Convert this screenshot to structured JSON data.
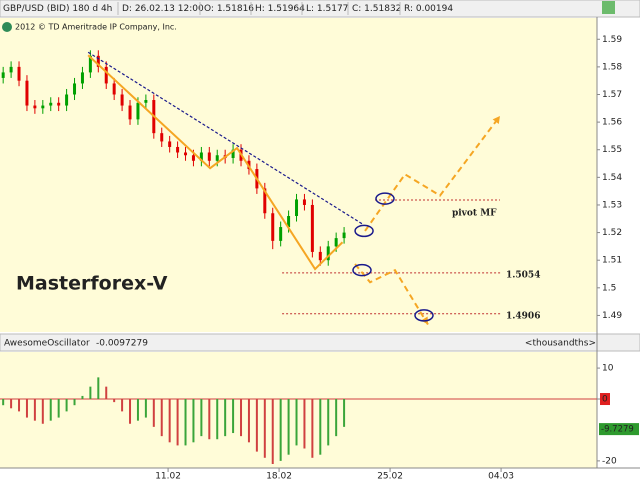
{
  "chart_data": [
    {
      "type": "candlestick",
      "title": "GBP/USD (BID) 180 d 4h",
      "readout": [
        "D: 26.02.13 12:00",
        "O: 1.51816",
        "H: 1.51964",
        "L: 1.5177",
        "C: 1.51832",
        "R: 0.00194"
      ],
      "copyright": "2012 © TD Ameritrade IP Company, Inc.",
      "watermark": "Masterforex-V",
      "x": [
        0.6,
        1.1,
        1.6,
        2.1,
        2.6,
        3.1,
        3.6,
        4.1,
        4.6,
        5.1,
        5.6,
        6.1,
        6.6,
        7.1,
        7.6,
        8.1,
        8.6,
        9.1,
        9.6,
        10.1,
        10.6,
        11.1,
        11.6,
        12.1,
        12.6,
        13.1,
        13.6,
        14.1,
        14.6,
        15.1,
        15.6,
        16.1,
        16.6,
        17.1,
        17.6,
        18.1,
        18.6,
        19.1,
        19.6,
        20.1,
        20.6,
        21.1,
        21.6,
        22.1
      ],
      "open": [
        1.576,
        1.578,
        1.58,
        1.575,
        1.566,
        1.565,
        1.566,
        1.567,
        1.566,
        1.57,
        1.574,
        1.578,
        1.584,
        1.58,
        1.574,
        1.57,
        1.566,
        1.561,
        1.567,
        1.568,
        1.556,
        1.553,
        1.551,
        1.549,
        1.548,
        1.546,
        1.549,
        1.546,
        1.548,
        1.547,
        1.55,
        1.546,
        1.543,
        1.536,
        1.527,
        1.517,
        1.522,
        1.526,
        1.532,
        1.53,
        1.513,
        1.51,
        1.515,
        1.518
      ],
      "high": [
        1.58,
        1.582,
        1.582,
        1.577,
        1.568,
        1.568,
        1.569,
        1.569,
        1.572,
        1.576,
        1.58,
        1.586,
        1.586,
        1.582,
        1.576,
        1.572,
        1.568,
        1.569,
        1.57,
        1.57,
        1.558,
        1.555,
        1.553,
        1.551,
        1.55,
        1.551,
        1.551,
        1.55,
        1.55,
        1.552,
        1.552,
        1.548,
        1.545,
        1.538,
        1.529,
        1.524,
        1.528,
        1.534,
        1.534,
        1.532,
        1.515,
        1.517,
        1.52,
        1.522
      ],
      "low": [
        1.574,
        1.576,
        1.573,
        1.564,
        1.563,
        1.563,
        1.564,
        1.564,
        1.564,
        1.568,
        1.572,
        1.576,
        1.578,
        1.572,
        1.568,
        1.564,
        1.559,
        1.559,
        1.565,
        1.554,
        1.551,
        1.549,
        1.547,
        1.546,
        1.544,
        1.544,
        1.544,
        1.544,
        1.545,
        1.545,
        1.544,
        1.541,
        1.534,
        1.525,
        1.514,
        1.515,
        1.52,
        1.524,
        1.528,
        1.511,
        1.508,
        1.508,
        1.513,
        1.516
      ],
      "close": [
        1.578,
        1.58,
        1.575,
        1.566,
        1.565,
        1.566,
        1.567,
        1.566,
        1.57,
        1.574,
        1.578,
        1.584,
        1.58,
        1.574,
        1.57,
        1.566,
        1.561,
        1.567,
        1.568,
        1.556,
        1.553,
        1.551,
        1.549,
        1.548,
        1.546,
        1.549,
        1.546,
        1.548,
        1.547,
        1.55,
        1.546,
        1.543,
        1.536,
        1.527,
        1.517,
        1.522,
        1.526,
        1.532,
        1.53,
        1.513,
        1.51,
        1.515,
        1.518,
        1.52
      ],
      "up_color": "#00a000",
      "down_color": "#e00000",
      "xlim": [
        0.4,
        38.05
      ],
      "ylim": [
        1.484,
        1.5977
      ],
      "yticks": [
        1.59,
        1.58,
        1.57,
        1.56,
        1.55,
        1.54,
        1.53,
        1.52,
        1.51,
        1.5,
        1.49
      ],
      "paths": [
        {
          "x": [
            5.96,
            23.23
          ],
          "y": [
            1.5853,
            1.5232
          ],
          "color": "#1a1a8c",
          "dashed": true
        },
        {
          "x": [
            5.96,
            13.65,
            15.35,
            20.27,
            22.0
          ],
          "y": [
            1.5842,
            1.5433,
            1.5506,
            1.5068,
            1.5165
          ],
          "color": "#f5a623",
          "dashed": false
        },
        {
          "x": [
            23.42,
            25.94,
            28.15,
            31.93
          ],
          "y": [
            1.5206,
            1.5411,
            1.5334,
            1.5622
          ],
          "color": "#f5a623",
          "dashed": true
        },
        {
          "x": [
            22.79,
            23.74,
            25.31,
            27.39
          ],
          "y": [
            1.5086,
            1.502,
            1.5064,
            1.4867
          ],
          "color": "#f5a623",
          "dashed": true
        }
      ],
      "levels": [
        {
          "value": 1.5318,
          "x": [
            24.05,
            31.93
          ],
          "label": "pivot MF"
        },
        {
          "value": 1.5054,
          "x": [
            18.19,
            32.06
          ]
        },
        {
          "value": 1.4906,
          "x": [
            18.19,
            32.06
          ]
        }
      ],
      "level_color": "#c03030",
      "circles": {
        "x": [
          24.68,
          23.36,
          23.23,
          27.14
        ],
        "y": [
          1.5323,
          1.5206,
          1.5064,
          1.49
        ],
        "color": "#1a1a8c"
      }
    },
    {
      "type": "bar",
      "title": "AwesomeOscillator",
      "readout": "-0.0097279",
      "unit_label": "<thousandths>",
      "x": [
        0.6,
        1.1,
        1.6,
        2.1,
        2.6,
        3.1,
        3.6,
        4.1,
        4.6,
        5.1,
        5.6,
        6.1,
        6.6,
        7.1,
        7.6,
        8.1,
        8.6,
        9.1,
        9.6,
        10.1,
        10.6,
        11.1,
        11.6,
        12.1,
        12.6,
        13.1,
        13.6,
        14.1,
        14.6,
        15.1,
        15.6,
        16.1,
        16.6,
        17.1,
        17.6,
        18.1,
        18.6,
        19.1,
        19.6,
        20.1,
        20.6,
        21.1,
        21.6,
        22.1
      ],
      "values": [
        -2,
        -3,
        -4,
        -6,
        -7,
        -8,
        -7,
        -6,
        -4,
        -2,
        1,
        4,
        7,
        4,
        -1,
        -4,
        -8,
        -7,
        -6,
        -9,
        -12,
        -14,
        -15,
        -15,
        -14,
        -12,
        -13,
        -13,
        -12,
        -11,
        -12,
        -14,
        -17,
        -19,
        -21,
        -20,
        -18,
        -15,
        -16,
        -19,
        -18,
        -15,
        -12,
        -9
      ],
      "up_color": "#3aa53a",
      "down_color": "#d04040",
      "last_value": -9.7279,
      "xlim": [
        0.4,
        38.05
      ],
      "ylim": [
        -22.3,
        15.2
      ],
      "yticks": [
        10,
        0,
        -20
      ],
      "xticks": [
        {
          "value": 11,
          "label": "11.02"
        },
        {
          "value": 18,
          "label": "18.02"
        },
        {
          "value": 25,
          "label": "25.02"
        },
        {
          "value": 32,
          "label": "04.03"
        }
      ]
    }
  ]
}
